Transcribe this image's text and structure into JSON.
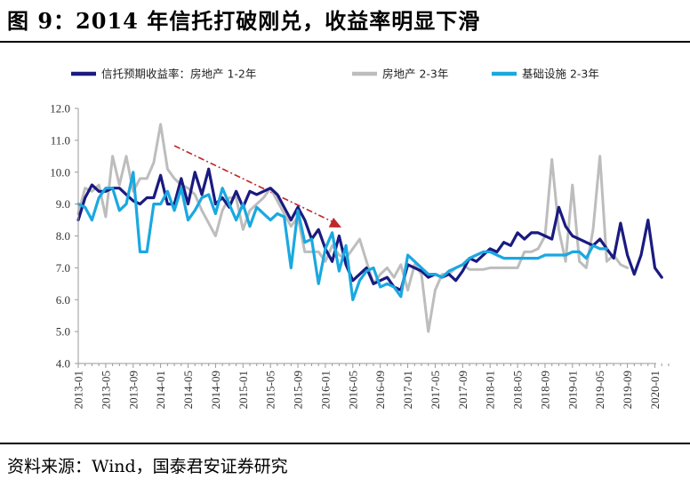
{
  "figure": {
    "title": "图 9：2014 年信托打破刚兑，收益率明显下滑",
    "source": "资料来源：Wind，国泰君安证券研究"
  },
  "chart_data": {
    "type": "line",
    "title": "",
    "xlabel": "",
    "ylabel": "",
    "ylim": [
      4.0,
      12.0
    ],
    "yticks": [
      "4.0",
      "5.0",
      "6.0",
      "7.0",
      "8.0",
      "9.0",
      "10.0",
      "11.0",
      "12.0"
    ],
    "xticks": [
      "2013-01",
      "2013-05",
      "2013-09",
      "2014-01",
      "2014-05",
      "2014-09",
      "2015-01",
      "2015-05",
      "2015-09",
      "2016-01",
      "2016-05",
      "2016-09",
      "2017-01",
      "2017-05",
      "2017-09",
      "2018-01",
      "2018-05",
      "2018-09",
      "2019-01",
      "2019-05",
      "2019-09",
      "2020-01"
    ],
    "grid": false,
    "legend_position": "top",
    "annotation": "red dash-dot downward trend arrow from 2014-03 to 2016-05",
    "series": [
      {
        "name": "信托预期收益率：房地产 1-2年",
        "color": "#1a1a80",
        "points": [
          [
            "2013-01",
            8.5
          ],
          [
            "2013-02",
            9.2
          ],
          [
            "2013-03",
            9.6
          ],
          [
            "2013-04",
            9.4
          ],
          [
            "2013-05",
            9.4
          ],
          [
            "2013-06",
            9.5
          ],
          [
            "2013-07",
            9.5
          ],
          [
            "2013-08",
            9.3
          ],
          [
            "2013-09",
            9.1
          ],
          [
            "2013-10",
            9.0
          ],
          [
            "2013-11",
            9.2
          ],
          [
            "2013-12",
            9.2
          ],
          [
            "2014-01",
            9.9
          ],
          [
            "2014-02",
            9.0
          ],
          [
            "2014-03",
            9.0
          ],
          [
            "2014-04",
            9.8
          ],
          [
            "2014-05",
            9.0
          ],
          [
            "2014-06",
            10.0
          ],
          [
            "2014-07",
            9.3
          ],
          [
            "2014-08",
            10.1
          ],
          [
            "2014-09",
            9.0
          ],
          [
            "2014-10",
            9.2
          ],
          [
            "2014-11",
            8.9
          ],
          [
            "2014-12",
            9.4
          ],
          [
            "2015-01",
            8.9
          ],
          [
            "2015-02",
            9.4
          ],
          [
            "2015-03",
            9.3
          ],
          [
            "2015-04",
            9.4
          ],
          [
            "2015-05",
            9.5
          ],
          [
            "2015-06",
            9.3
          ],
          [
            "2015-07",
            8.9
          ],
          [
            "2015-08",
            8.5
          ],
          [
            "2015-09",
            8.9
          ],
          [
            "2015-10",
            8.5
          ],
          [
            "2015-11",
            7.9
          ],
          [
            "2015-12",
            8.2
          ],
          [
            "2016-01",
            7.6
          ],
          [
            "2016-02",
            7.2
          ],
          [
            "2016-03",
            8.0
          ],
          [
            "2016-04",
            7.1
          ],
          [
            "2016-05",
            6.6
          ],
          [
            "2016-06",
            6.8
          ],
          [
            "2016-07",
            7.0
          ],
          [
            "2016-08",
            6.5
          ],
          [
            "2016-09",
            6.6
          ],
          [
            "2016-10",
            6.7
          ],
          [
            "2016-11",
            6.4
          ],
          [
            "2016-12",
            6.3
          ],
          [
            "2017-01",
            7.1
          ],
          [
            "2017-02",
            7.0
          ],
          [
            "2017-03",
            6.9
          ],
          [
            "2017-04",
            6.7
          ],
          [
            "2017-05",
            6.8
          ],
          [
            "2017-06",
            6.7
          ],
          [
            "2017-07",
            6.8
          ],
          [
            "2017-08",
            6.6
          ],
          [
            "2017-09",
            6.9
          ],
          [
            "2017-10",
            7.3
          ],
          [
            "2017-11",
            7.2
          ],
          [
            "2017-12",
            7.4
          ],
          [
            "2018-01",
            7.6
          ],
          [
            "2018-02",
            7.5
          ],
          [
            "2018-03",
            7.8
          ],
          [
            "2018-04",
            7.7
          ],
          [
            "2018-05",
            8.1
          ],
          [
            "2018-06",
            7.9
          ],
          [
            "2018-07",
            8.1
          ],
          [
            "2018-08",
            8.1
          ],
          [
            "2018-09",
            8.0
          ],
          [
            "2018-10",
            7.9
          ],
          [
            "2018-11",
            8.9
          ],
          [
            "2018-12",
            8.3
          ],
          [
            "2019-01",
            8.0
          ],
          [
            "2019-02",
            7.9
          ],
          [
            "2019-03",
            7.8
          ],
          [
            "2019-04",
            7.7
          ],
          [
            "2019-05",
            7.9
          ],
          [
            "2019-06",
            7.6
          ],
          [
            "2019-07",
            7.3
          ],
          [
            "2019-08",
            8.4
          ],
          [
            "2019-09",
            7.4
          ],
          [
            "2019-10",
            6.8
          ],
          [
            "2019-11",
            7.4
          ],
          [
            "2019-12",
            8.5
          ],
          [
            "2020-01",
            7.0
          ],
          [
            "2020-02",
            6.7
          ]
        ]
      },
      {
        "name": "房地产 2-3年",
        "color": "#bdbdbd",
        "points": [
          [
            "2013-01",
            8.7
          ],
          [
            "2013-02",
            9.5
          ],
          [
            "2013-03",
            9.4
          ],
          [
            "2013-04",
            9.6
          ],
          [
            "2013-05",
            8.6
          ],
          [
            "2013-06",
            10.5
          ],
          [
            "2013-07",
            9.6
          ],
          [
            "2013-08",
            10.5
          ],
          [
            "2013-09",
            9.4
          ],
          [
            "2013-10",
            9.8
          ],
          [
            "2013-11",
            9.8
          ],
          [
            "2013-12",
            10.3
          ],
          [
            "2014-01",
            11.5
          ],
          [
            "2014-02",
            10.1
          ],
          [
            "2014-03",
            9.8
          ],
          [
            "2014-04",
            9.6
          ],
          [
            "2014-05",
            9.5
          ],
          [
            "2014-06",
            9.3
          ],
          [
            "2014-07",
            8.8
          ],
          [
            "2014-08",
            8.4
          ],
          [
            "2014-09",
            8.0
          ],
          [
            "2014-10",
            8.8
          ],
          [
            "2014-11",
            9.2
          ],
          [
            "2014-12",
            9.2
          ],
          [
            "2015-01",
            8.2
          ],
          [
            "2015-02",
            8.8
          ],
          [
            "2015-03",
            9.0
          ],
          [
            "2015-04",
            9.2
          ],
          [
            "2015-05",
            9.5
          ],
          [
            "2015-06",
            9.1
          ],
          [
            "2015-07",
            8.7
          ],
          [
            "2015-08",
            8.3
          ],
          [
            "2015-09",
            8.6
          ],
          [
            "2015-10",
            7.5
          ],
          [
            "2015-11",
            7.5
          ],
          [
            "2015-12",
            7.5
          ],
          [
            "2016-01",
            7.2
          ],
          [
            "2016-02",
            7.7
          ],
          [
            "2016-03",
            7.4
          ],
          [
            "2016-04",
            7.3
          ],
          [
            "2016-05",
            7.6
          ],
          [
            "2016-06",
            7.9
          ],
          [
            "2016-07",
            7.2
          ],
          [
            "2016-08",
            6.5
          ],
          [
            "2016-09",
            6.8
          ],
          [
            "2016-10",
            7.0
          ],
          [
            "2016-11",
            6.7
          ],
          [
            "2016-12",
            7.1
          ],
          [
            "2017-01",
            6.3
          ],
          [
            "2017-02",
            7.1
          ],
          [
            "2017-03",
            6.8
          ],
          [
            "2017-04",
            5.0
          ],
          [
            "2017-05",
            6.3
          ],
          [
            "2017-06",
            6.8
          ],
          [
            "2017-07",
            6.8
          ],
          [
            "2017-08",
            7.0
          ],
          [
            "2017-09",
            7.1
          ],
          [
            "2017-10",
            6.95
          ],
          [
            "2017-11",
            6.95
          ],
          [
            "2017-12",
            6.95
          ],
          [
            "2018-01",
            7.0
          ],
          [
            "2018-02",
            7.0
          ],
          [
            "2018-03",
            7.0
          ],
          [
            "2018-04",
            7.0
          ],
          [
            "2018-05",
            7.0
          ],
          [
            "2018-06",
            7.5
          ],
          [
            "2018-07",
            7.5
          ],
          [
            "2018-08",
            7.6
          ],
          [
            "2018-09",
            8.0
          ],
          [
            "2018-10",
            10.4
          ],
          [
            "2018-11",
            8.2
          ],
          [
            "2018-12",
            7.2
          ],
          [
            "2019-01",
            9.6
          ],
          [
            "2019-02",
            7.2
          ],
          [
            "2019-03",
            7.0
          ],
          [
            "2019-04",
            8.2
          ],
          [
            "2019-05",
            10.5
          ],
          [
            "2019-06",
            7.2
          ],
          [
            "2019-07",
            7.4
          ],
          [
            "2019-08",
            7.1
          ],
          [
            "2019-09",
            7.0
          ]
        ]
      },
      {
        "name": "基础设施 2-3年",
        "color": "#1aa8e0",
        "points": [
          [
            "2013-01",
            9.0
          ],
          [
            "2013-02",
            8.9
          ],
          [
            "2013-03",
            8.5
          ],
          [
            "2013-04",
            9.2
          ],
          [
            "2013-05",
            9.5
          ],
          [
            "2013-06",
            9.5
          ],
          [
            "2013-07",
            8.8
          ],
          [
            "2013-08",
            9.0
          ],
          [
            "2013-09",
            10.0
          ],
          [
            "2013-10",
            7.5
          ],
          [
            "2013-11",
            7.5
          ],
          [
            "2013-12",
            9.0
          ],
          [
            "2014-01",
            9.0
          ],
          [
            "2014-02",
            9.4
          ],
          [
            "2014-03",
            8.8
          ],
          [
            "2014-04",
            9.5
          ],
          [
            "2014-05",
            8.5
          ],
          [
            "2014-06",
            8.8
          ],
          [
            "2014-07",
            9.2
          ],
          [
            "2014-08",
            9.3
          ],
          [
            "2014-09",
            8.7
          ],
          [
            "2014-10",
            9.5
          ],
          [
            "2014-11",
            9.0
          ],
          [
            "2014-12",
            8.5
          ],
          [
            "2015-01",
            9.0
          ],
          [
            "2015-02",
            8.3
          ],
          [
            "2015-03",
            8.9
          ],
          [
            "2015-04",
            8.7
          ],
          [
            "2015-05",
            8.5
          ],
          [
            "2015-06",
            8.7
          ],
          [
            "2015-07",
            8.6
          ],
          [
            "2015-08",
            7.0
          ],
          [
            "2015-09",
            8.8
          ],
          [
            "2015-10",
            7.8
          ],
          [
            "2015-11",
            7.9
          ],
          [
            "2015-12",
            6.5
          ],
          [
            "2016-01",
            7.6
          ],
          [
            "2016-02",
            8.1
          ],
          [
            "2016-03",
            6.9
          ],
          [
            "2016-04",
            7.7
          ],
          [
            "2016-05",
            6.0
          ],
          [
            "2016-06",
            6.6
          ],
          [
            "2016-07",
            6.9
          ],
          [
            "2016-08",
            7.0
          ],
          [
            "2016-09",
            6.4
          ],
          [
            "2016-10",
            6.5
          ],
          [
            "2016-11",
            6.4
          ],
          [
            "2016-12",
            6.1
          ],
          [
            "2017-01",
            7.4
          ],
          [
            "2017-02",
            7.2
          ],
          [
            "2017-03",
            7.0
          ],
          [
            "2017-04",
            6.8
          ],
          [
            "2017-05",
            6.8
          ],
          [
            "2017-06",
            6.7
          ],
          [
            "2017-07",
            6.9
          ],
          [
            "2017-08",
            7.0
          ],
          [
            "2017-09",
            7.1
          ],
          [
            "2017-10",
            7.3
          ],
          [
            "2017-11",
            7.4
          ],
          [
            "2017-12",
            7.5
          ],
          [
            "2018-01",
            7.5
          ],
          [
            "2018-02",
            7.4
          ],
          [
            "2018-03",
            7.3
          ],
          [
            "2018-04",
            7.3
          ],
          [
            "2018-05",
            7.3
          ],
          [
            "2018-06",
            7.3
          ],
          [
            "2018-07",
            7.3
          ],
          [
            "2018-08",
            7.3
          ],
          [
            "2018-09",
            7.4
          ],
          [
            "2018-10",
            7.4
          ],
          [
            "2018-11",
            7.4
          ],
          [
            "2018-12",
            7.4
          ],
          [
            "2019-01",
            7.5
          ],
          [
            "2019-02",
            7.5
          ],
          [
            "2019-03",
            7.3
          ],
          [
            "2019-04",
            7.7
          ],
          [
            "2019-05",
            7.6
          ],
          [
            "2019-06",
            7.6
          ]
        ]
      }
    ]
  }
}
